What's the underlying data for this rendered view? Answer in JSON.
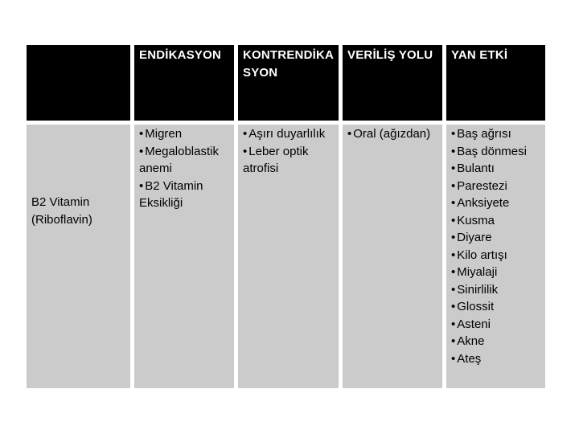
{
  "page": {
    "background_color": "#ffffff"
  },
  "table": {
    "header_bg_color": "#000000",
    "header_text_color": "#ffffff",
    "cell_bg_color": "#cbcbcb",
    "cell_text_color": "#000000",
    "columns": [
      {
        "key": "drug",
        "label": ""
      },
      {
        "key": "endikasyon",
        "label": "ENDİKASYON"
      },
      {
        "key": "kontrendikasyon",
        "label": "KONTRENDİKA\nSYON"
      },
      {
        "key": "verilis_yolu",
        "label": "VERİLİŞ YOLU"
      },
      {
        "key": "yan_etki",
        "label": "YAN ETKİ"
      }
    ],
    "row": {
      "drug": "B2 Vitamin (Riboflavin)",
      "endikasyon": [
        "Migren",
        "Megaloblastik anemi",
        "B2 Vitamin Eksikliği"
      ],
      "kontrendikasyon": [
        "Aşırı duyarlılık",
        "Leber optik atrofisi"
      ],
      "verilis_yolu": [
        "Oral (ağızdan)"
      ],
      "yan_etki": [
        "Baş ağrısı",
        "Baş dönmesi",
        "Bulantı",
        "Parestezi",
        "Anksiyete",
        "Kusma",
        "Diyare",
        "Kilo artışı",
        "Miyalaji",
        "Sinirlilik",
        "Glossit",
        "Asteni",
        "Akne",
        "Ateş"
      ]
    }
  }
}
